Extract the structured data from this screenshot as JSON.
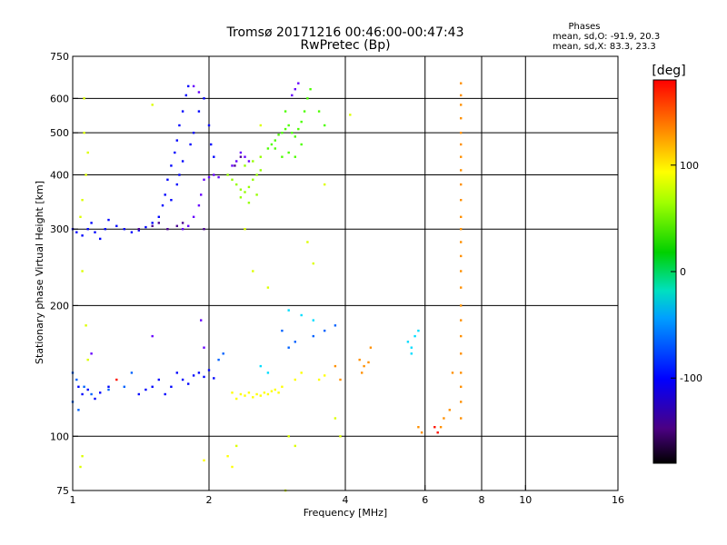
{
  "chart_data": {
    "type": "scatter",
    "title": "Tromsø 20171216 00:46:00-00:47:43",
    "subtitle": "RwPretec (Bp)",
    "xlabel": "Frequency [MHz]",
    "ylabel": "Stationary phase Virtual Height [km]",
    "xscale": "log",
    "yscale": "log",
    "xlim": [
      1,
      16
    ],
    "ylim": [
      75,
      750
    ],
    "xticks": [
      1,
      2,
      4,
      6,
      8,
      10,
      16
    ],
    "yticks": [
      75,
      100,
      200,
      300,
      400,
      500,
      600,
      750
    ],
    "xgrid": [
      2,
      4,
      6,
      8,
      10
    ],
    "ygrid": [
      100,
      200,
      300,
      400,
      500,
      600
    ],
    "stats": {
      "heading": "Phases",
      "line_o": "mean, sd,O: -91.9, 20.3",
      "line_x": "mean, sd,X: 83.3, 23.3"
    },
    "colorbar": {
      "label": "[deg]",
      "range": [
        -180,
        180
      ],
      "ticks": [
        100,
        0,
        -100
      ],
      "tick_labels": [
        "100",
        "0",
        "-100"
      ],
      "colormap": "rainbow"
    },
    "series": [
      {
        "phase": -100,
        "points": [
          [
            1.0,
            300
          ],
          [
            1.02,
            295
          ],
          [
            1.05,
            290
          ],
          [
            1.08,
            300
          ],
          [
            1.1,
            310
          ],
          [
            1.12,
            295
          ],
          [
            1.15,
            285
          ],
          [
            1.18,
            300
          ],
          [
            1.2,
            315
          ],
          [
            1.25,
            305
          ],
          [
            1.3,
            300
          ],
          [
            1.35,
            295
          ],
          [
            1.4,
            298
          ],
          [
            1.45,
            303
          ],
          [
            1.5,
            310
          ],
          [
            1.55,
            320
          ],
          [
            1.58,
            340
          ],
          [
            1.6,
            360
          ],
          [
            1.62,
            390
          ],
          [
            1.65,
            420
          ],
          [
            1.68,
            450
          ],
          [
            1.7,
            480
          ],
          [
            1.72,
            520
          ],
          [
            1.75,
            560
          ],
          [
            1.78,
            610
          ],
          [
            1.8,
            640
          ],
          [
            1.7,
            380
          ],
          [
            1.72,
            400
          ],
          [
            1.75,
            430
          ],
          [
            1.65,
            350
          ],
          [
            1.82,
            470
          ],
          [
            1.85,
            500
          ],
          [
            1.9,
            560
          ],
          [
            1.95,
            600
          ],
          [
            2.0,
            520
          ],
          [
            2.02,
            470
          ],
          [
            2.05,
            440
          ],
          [
            1.03,
            130
          ],
          [
            1.05,
            125
          ],
          [
            1.08,
            128
          ],
          [
            1.12,
            122
          ],
          [
            1.15,
            126
          ],
          [
            1.2,
            130
          ],
          [
            1.4,
            125
          ],
          [
            1.45,
            128
          ],
          [
            1.5,
            130
          ],
          [
            1.55,
            135
          ],
          [
            1.6,
            125
          ],
          [
            1.65,
            130
          ],
          [
            1.7,
            140
          ],
          [
            1.75,
            135
          ],
          [
            1.8,
            132
          ],
          [
            1.85,
            138
          ],
          [
            1.9,
            140
          ],
          [
            1.95,
            137
          ],
          [
            2.0,
            142
          ],
          [
            2.05,
            136
          ]
        ]
      },
      {
        "phase": -130,
        "points": [
          [
            1.75,
            300
          ],
          [
            1.8,
            305
          ],
          [
            1.85,
            320
          ],
          [
            1.9,
            340
          ],
          [
            1.92,
            360
          ],
          [
            1.95,
            390
          ],
          [
            2.0,
            395
          ],
          [
            2.05,
            400
          ],
          [
            2.1,
            395
          ],
          [
            2.25,
            420
          ],
          [
            2.3,
            430
          ],
          [
            2.35,
            450
          ],
          [
            2.4,
            440
          ],
          [
            2.45,
            430
          ],
          [
            3.05,
            610
          ],
          [
            3.1,
            630
          ],
          [
            3.15,
            650
          ],
          [
            1.85,
            640
          ],
          [
            1.9,
            620
          ],
          [
            1.92,
            185
          ],
          [
            1.95,
            160
          ],
          [
            1.1,
            155
          ],
          [
            1.5,
            170
          ]
        ]
      },
      {
        "phase": -160,
        "points": [
          [
            1.4,
            300
          ],
          [
            1.5,
            305
          ],
          [
            1.55,
            310
          ],
          [
            1.62,
            300
          ],
          [
            1.7,
            305
          ],
          [
            1.75,
            310
          ],
          [
            2.28,
            420
          ],
          [
            2.35,
            440
          ],
          [
            1.95,
            300
          ]
        ]
      },
      {
        "phase": 80,
        "points": [
          [
            2.2,
            400
          ],
          [
            2.25,
            390
          ],
          [
            2.3,
            380
          ],
          [
            2.35,
            370
          ],
          [
            2.4,
            365
          ],
          [
            2.45,
            375
          ],
          [
            2.5,
            390
          ],
          [
            2.55,
            400
          ],
          [
            2.6,
            410
          ],
          [
            2.35,
            355
          ],
          [
            2.45,
            345
          ],
          [
            2.55,
            360
          ],
          [
            2.4,
            420
          ],
          [
            2.5,
            430
          ],
          [
            2.6,
            440
          ]
        ]
      },
      {
        "phase": 60,
        "points": [
          [
            2.7,
            460
          ],
          [
            2.75,
            470
          ],
          [
            2.8,
            480
          ],
          [
            2.85,
            495
          ],
          [
            2.9,
            500
          ],
          [
            2.95,
            510
          ],
          [
            3.0,
            520
          ],
          [
            3.05,
            500
          ],
          [
            3.1,
            490
          ],
          [
            3.15,
            510
          ],
          [
            3.2,
            530
          ],
          [
            3.25,
            560
          ],
          [
            3.3,
            600
          ],
          [
            3.35,
            630
          ],
          [
            3.0,
            450
          ],
          [
            3.1,
            440
          ],
          [
            3.2,
            470
          ],
          [
            2.9,
            440
          ],
          [
            2.8,
            460
          ],
          [
            2.95,
            560
          ],
          [
            3.5,
            560
          ],
          [
            3.6,
            520
          ]
        ]
      },
      {
        "phase": 110,
        "points": [
          [
            2.35,
            125
          ],
          [
            2.4,
            124
          ],
          [
            2.45,
            126
          ],
          [
            2.5,
            123
          ],
          [
            2.55,
            125
          ],
          [
            2.6,
            124
          ],
          [
            2.65,
            126
          ],
          [
            2.7,
            125
          ],
          [
            2.75,
            127
          ],
          [
            2.8,
            128
          ],
          [
            2.85,
            126
          ],
          [
            2.9,
            130
          ],
          [
            2.25,
            126
          ],
          [
            2.3,
            122
          ],
          [
            3.1,
            135
          ],
          [
            3.2,
            140
          ],
          [
            3.5,
            135
          ],
          [
            3.6,
            138
          ],
          [
            2.2,
            90
          ],
          [
            2.25,
            85
          ],
          [
            1.95,
            88
          ]
        ]
      },
      {
        "phase": 140,
        "points": [
          [
            7.2,
            650
          ],
          [
            7.2,
            610
          ],
          [
            7.2,
            580
          ],
          [
            7.2,
            540
          ],
          [
            7.2,
            500
          ],
          [
            7.2,
            470
          ],
          [
            7.2,
            440
          ],
          [
            7.2,
            410
          ],
          [
            7.2,
            380
          ],
          [
            7.2,
            350
          ],
          [
            7.2,
            320
          ],
          [
            7.2,
            300
          ],
          [
            7.2,
            280
          ],
          [
            7.2,
            260
          ],
          [
            7.2,
            240
          ],
          [
            7.2,
            220
          ],
          [
            7.2,
            200
          ],
          [
            7.2,
            185
          ],
          [
            7.2,
            170
          ],
          [
            7.2,
            155
          ],
          [
            7.2,
            140
          ],
          [
            7.2,
            130
          ],
          [
            7.2,
            120
          ],
          [
            7.2,
            110
          ],
          [
            6.8,
            115
          ],
          [
            6.6,
            110
          ],
          [
            6.5,
            105
          ],
          [
            6.9,
            140
          ],
          [
            5.8,
            105
          ],
          [
            5.9,
            102
          ],
          [
            4.4,
            145
          ],
          [
            4.5,
            148
          ],
          [
            4.3,
            150
          ],
          [
            4.35,
            140
          ],
          [
            4.55,
            160
          ],
          [
            3.8,
            145
          ],
          [
            3.9,
            135
          ]
        ]
      },
      {
        "phase": -40,
        "points": [
          [
            5.5,
            165
          ],
          [
            5.6,
            160
          ],
          [
            5.7,
            170
          ],
          [
            5.8,
            175
          ],
          [
            5.6,
            155
          ],
          [
            3.0,
            195
          ],
          [
            3.2,
            190
          ],
          [
            3.4,
            185
          ],
          [
            2.6,
            145
          ],
          [
            2.7,
            140
          ]
        ]
      },
      {
        "phase": 175,
        "points": [
          [
            6.3,
            105
          ],
          [
            6.4,
            102
          ],
          [
            1.25,
            135
          ]
        ]
      },
      {
        "phase": 100,
        "points": [
          [
            1.06,
            500
          ],
          [
            1.08,
            450
          ],
          [
            1.07,
            400
          ],
          [
            1.05,
            350
          ],
          [
            1.04,
            320
          ],
          [
            1.06,
            600
          ],
          [
            1.05,
            240
          ],
          [
            1.07,
            180
          ],
          [
            1.08,
            150
          ],
          [
            1.05,
            90
          ],
          [
            1.04,
            85
          ],
          [
            1.5,
            580
          ],
          [
            2.6,
            520
          ],
          [
            2.4,
            300
          ],
          [
            2.5,
            240
          ],
          [
            2.7,
            220
          ],
          [
            3.3,
            280
          ],
          [
            3.4,
            250
          ],
          [
            3.8,
            110
          ],
          [
            3.9,
            100
          ],
          [
            3.0,
            100
          ],
          [
            3.1,
            95
          ],
          [
            2.95,
            75
          ],
          [
            2.3,
            95
          ],
          [
            3.6,
            380
          ],
          [
            4.1,
            550
          ]
        ]
      },
      {
        "phase": -75,
        "points": [
          [
            1.0,
            140
          ],
          [
            1.02,
            135
          ],
          [
            1.0,
            120
          ],
          [
            1.03,
            115
          ],
          [
            1.06,
            130
          ],
          [
            1.1,
            125
          ],
          [
            1.3,
            130
          ],
          [
            1.2,
            128
          ],
          [
            1.35,
            140
          ],
          [
            2.1,
            150
          ],
          [
            2.15,
            155
          ],
          [
            3.0,
            160
          ],
          [
            3.1,
            165
          ],
          [
            3.4,
            170
          ],
          [
            3.6,
            175
          ],
          [
            3.8,
            180
          ],
          [
            2.9,
            175
          ]
        ]
      }
    ]
  }
}
